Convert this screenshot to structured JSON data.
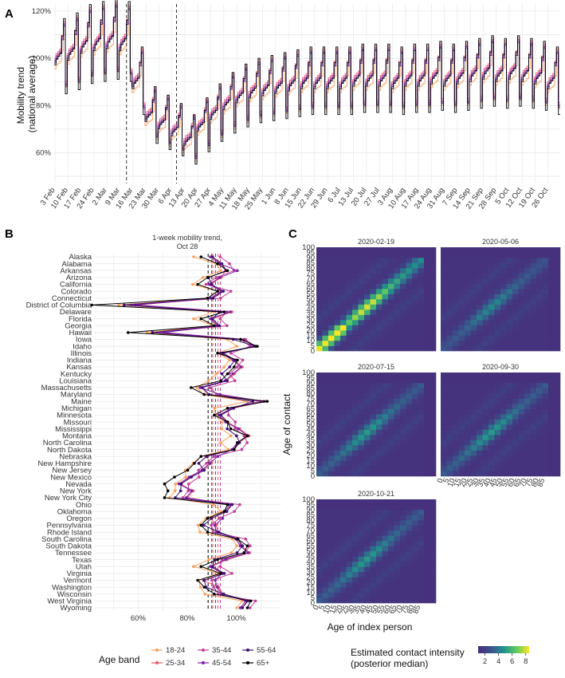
{
  "panels": {
    "A": {
      "letter": "A"
    },
    "B": {
      "letter": "B",
      "title_line1": "1-week mobility trend,",
      "title_line2": "Oct 28"
    },
    "C": {
      "letter": "C"
    }
  },
  "colors": {
    "18-24": "#f8a15c",
    "25-34": "#ec5a6a",
    "35-44": "#c13f99",
    "45-54": "#7a1fa2",
    "55-64": "#3b0f70",
    "65+": "#000000",
    "grid": "#e6e6e6",
    "heat_low": "#472d7b",
    "heat_high": "#fde725"
  },
  "legend": {
    "title": "Age band",
    "items": [
      "18-24",
      "25-34",
      "35-44",
      "45-54",
      "55-64",
      "65+"
    ]
  },
  "colorbar": {
    "title_line1": "Estimated contact intensity",
    "title_line2": "(posterior median)",
    "ticks": [
      "2",
      "4",
      "6",
      "8"
    ]
  },
  "chart_data": [
    {
      "type": "line",
      "panel": "A",
      "ylabel": "Mobility trend (national average)",
      "ylim": [
        0.47,
        1.23
      ],
      "yticks": [
        "60%",
        "80%",
        "100%",
        "120%"
      ],
      "ytick_values": [
        0.6,
        0.8,
        1.0,
        1.2
      ],
      "xticks": [
        "3 Feb",
        "10 Feb",
        "17 Feb",
        "24 Feb",
        "2 Mar",
        "9 Mar",
        "16 Mar",
        "23 Mar",
        "30 Mar",
        "6 Apr",
        "13 Apr",
        "20 Apr",
        "27 Apr",
        "4 May",
        "11 May",
        "18 May",
        "25 May",
        "1 Jun",
        "8 Jun",
        "15 Jun",
        "22 Jun",
        "29 Jun",
        "6 Jul",
        "13 Jul",
        "20 Jul",
        "27 Jul",
        "3 Aug",
        "10 Aug",
        "17 Aug",
        "24 Aug",
        "31 Aug",
        "7 Sep",
        "14 Sep",
        "21 Sep",
        "28 Sep",
        "5 Oct",
        "12 Oct",
        "19 Oct",
        "26 Oct"
      ],
      "vlines": [
        "13 Mar",
        "9 Apr"
      ],
      "weekly_baseline": [
        0.98,
        1.0,
        1.03,
        1.04,
        1.05,
        1.04,
        0.88,
        0.74,
        0.71,
        0.68,
        0.64,
        0.7,
        0.75,
        0.79,
        0.82,
        0.84,
        0.85,
        0.86,
        0.87,
        0.88,
        0.88,
        0.88,
        0.88,
        0.89,
        0.89,
        0.89,
        0.88,
        0.89,
        0.89,
        0.9,
        0.89,
        0.9,
        0.91,
        0.92,
        0.91,
        0.92,
        0.91,
        0.9,
        0.88
      ],
      "series_offsets": {
        "18-24": -0.025,
        "25-34": 0.02,
        "35-44": 0.012,
        "45-54": 0.006,
        "55-64": 0.0,
        "65+": -0.008
      }
    },
    {
      "type": "scatter",
      "panel": "B",
      "xlim": [
        0.42,
        1.18
      ],
      "xticks": [
        "60%",
        "80%",
        "100%"
      ],
      "xtick_values": [
        0.6,
        0.8,
        1.0
      ],
      "vlines": {
        "18-24": 0.905,
        "25-34": 0.925,
        "35-44": 0.935,
        "45-54": 0.915,
        "55-64": 0.9,
        "65+": 0.885
      },
      "states": [
        "Alaska",
        "Alabama",
        "Arkansas",
        "Arizona",
        "California",
        "Colorado",
        "Connecticut",
        "District of Columbia",
        "Delaware",
        "Florida",
        "Georgia",
        "Hawaii",
        "Iowa",
        "Idaho",
        "Illinois",
        "Indiana",
        "Kansas",
        "Kentucky",
        "Louisiana",
        "Massachusetts",
        "Maryland",
        "Maine",
        "Michigan",
        "Minnesota",
        "Missouri",
        "Mississippi",
        "Montana",
        "North Carolina",
        "North Dakota",
        "Nebraska",
        "New Hampshire",
        "New Jersey",
        "New Mexico",
        "Nevada",
        "New York",
        "New York City",
        "Ohio",
        "Oklahoma",
        "Oregon",
        "Pennsylvania",
        "Rhode Island",
        "South Carolina",
        "South Dakota",
        "Tennessee",
        "Texas",
        "Utah",
        "Virginia",
        "Vermont",
        "Washington",
        "Wisconsin",
        "West Virginia",
        "Wyoming"
      ],
      "state_means": [
        0.88,
        0.93,
        0.96,
        0.9,
        0.87,
        0.93,
        0.9,
        0.55,
        0.95,
        0.88,
        0.92,
        0.66,
        1.0,
        1.05,
        0.93,
        0.99,
        0.98,
        0.96,
        0.94,
        0.85,
        0.89,
        1.08,
        0.96,
        0.92,
        0.96,
        0.97,
        1.02,
        0.99,
        0.98,
        0.88,
        0.86,
        0.84,
        0.8,
        0.77,
        0.78,
        0.77,
        0.96,
        0.95,
        0.9,
        0.88,
        0.9,
        0.99,
        1.02,
        1.01,
        0.93,
        0.88,
        0.94,
        0.87,
        0.89,
        0.92,
        1.03,
        1.02
      ],
      "series_offsets": {
        "18-24": -0.03,
        "25-34": 0.02,
        "35-44": 0.03,
        "45-54": 0.02,
        "55-64": 0.005,
        "65+": -0.01
      }
    },
    {
      "type": "heatmap",
      "panel": "C",
      "xlabel": "Age of index person",
      "ylabel": "Age of contact",
      "axis_ticks": [
        "0",
        "5",
        "10",
        "15",
        "20",
        "25",
        "30",
        "35",
        "40",
        "45",
        "50",
        "55",
        "60",
        "65",
        "70",
        "75",
        "80",
        "85",
        "90",
        "95",
        "100"
      ],
      "x_axis_ticks": [
        "0",
        "5",
        "10",
        "15",
        "20",
        "25",
        "30",
        "35",
        "40",
        "45",
        "50",
        "55",
        "60",
        "65",
        "70",
        "75",
        "80",
        "85"
      ],
      "color_range": [
        1,
        8.5
      ],
      "dates": [
        "2020-02-19",
        "2020-05-06",
        "2020-07-15",
        "2020-09-30",
        "2020-10-21"
      ],
      "peak_intensity": [
        8.0,
        4.5,
        5.0,
        5.0,
        5.0
      ]
    }
  ]
}
